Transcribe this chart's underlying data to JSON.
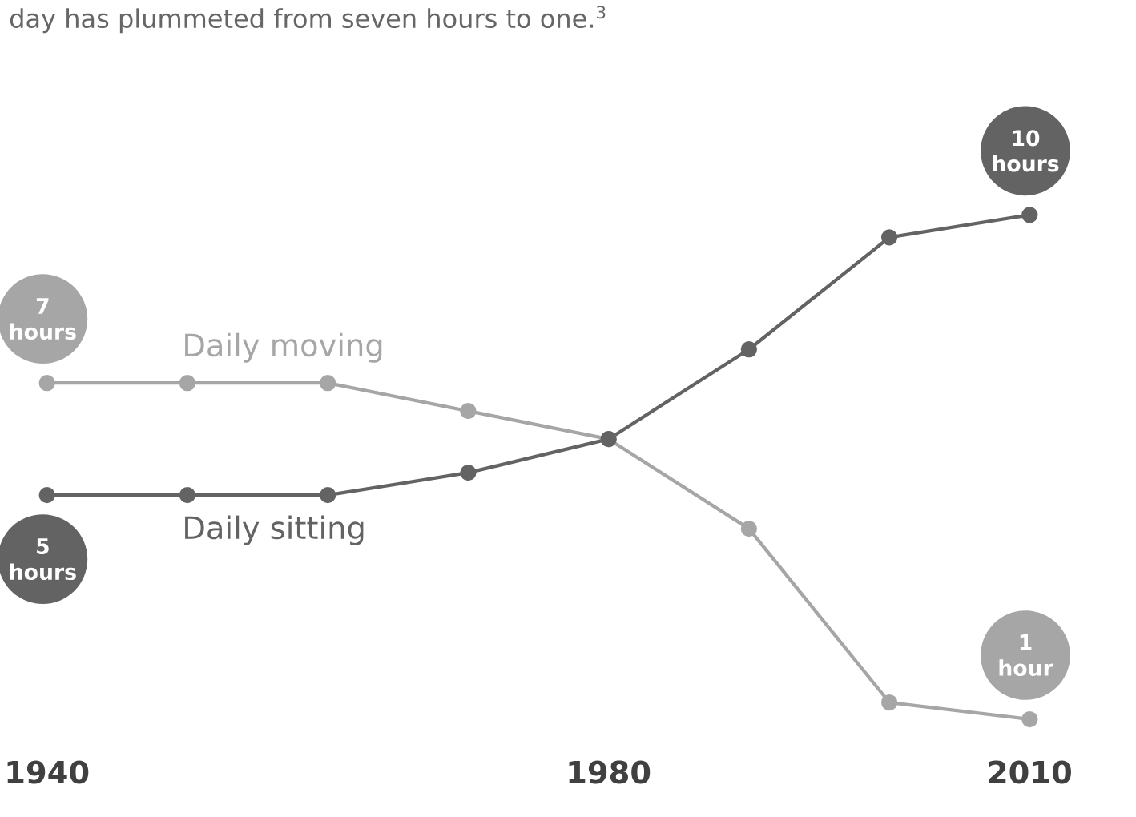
{
  "chart_data": {
    "type": "line",
    "title": "day has plummeted from seven hours to one.$^{3}$",
    "x": [
      1940,
      1950,
      1960,
      1970,
      1980,
      1990,
      2000,
      2010
    ],
    "xlim": [
      1940,
      2010
    ],
    "xticks": [
      1940,
      1980,
      2010
    ],
    "tick_labels": "x",
    "marker": "circle",
    "line_style": "solid",
    "series": [
      {
        "name": "Daily moving",
        "color": "#a6a6a6",
        "values": [
          7,
          7,
          7,
          6.5,
          6,
          4.4,
          1.3,
          1
        ],
        "value_labels": [
          "7 hours",
          null,
          null,
          null,
          null,
          null,
          null,
          "1 hour"
        ]
      },
      {
        "name": "Daily sitting",
        "color": "#636363",
        "values": [
          5,
          5,
          5,
          5.4,
          6,
          7.6,
          9.6,
          10
        ],
        "value_labels": [
          "5 hours",
          null,
          null,
          null,
          null,
          null,
          null,
          "10 hours"
        ]
      }
    ]
  }
}
